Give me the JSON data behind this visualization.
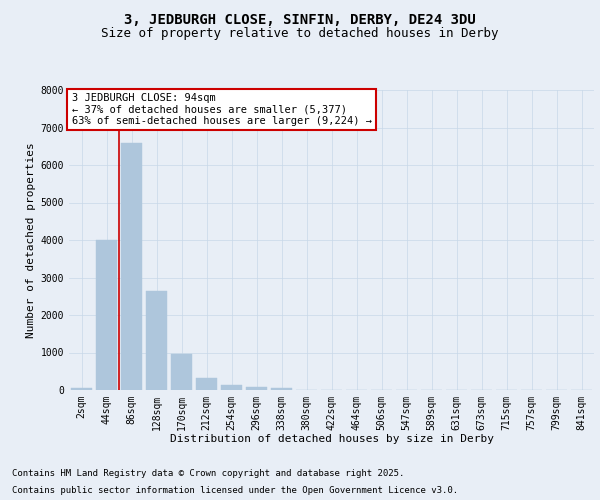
{
  "title_line1": "3, JEDBURGH CLOSE, SINFIN, DERBY, DE24 3DU",
  "title_line2": "Size of property relative to detached houses in Derby",
  "xlabel": "Distribution of detached houses by size in Derby",
  "ylabel": "Number of detached properties",
  "categories": [
    "2sqm",
    "44sqm",
    "86sqm",
    "128sqm",
    "170sqm",
    "212sqm",
    "254sqm",
    "296sqm",
    "338sqm",
    "380sqm",
    "422sqm",
    "464sqm",
    "506sqm",
    "547sqm",
    "589sqm",
    "631sqm",
    "673sqm",
    "715sqm",
    "757sqm",
    "799sqm",
    "841sqm"
  ],
  "values": [
    60,
    4000,
    6600,
    2650,
    950,
    320,
    130,
    70,
    50,
    0,
    0,
    0,
    0,
    0,
    0,
    0,
    0,
    0,
    0,
    0,
    0
  ],
  "bar_color": "#aec6dc",
  "bar_edge_color": "#aec6dc",
  "vline_color": "#cc0000",
  "annotation_text": "3 JEDBURGH CLOSE: 94sqm\n← 37% of detached houses are smaller (5,377)\n63% of semi-detached houses are larger (9,224) →",
  "annotation_box_facecolor": "#ffffff",
  "annotation_box_edgecolor": "#cc0000",
  "annotation_fontsize": 7.5,
  "grid_color": "#c8d8e8",
  "bg_color": "#e8eef6",
  "plot_bg_color": "#e8eef6",
  "ylim": [
    0,
    8000
  ],
  "yticks": [
    0,
    1000,
    2000,
    3000,
    4000,
    5000,
    6000,
    7000,
    8000
  ],
  "footer_line1": "Contains HM Land Registry data © Crown copyright and database right 2025.",
  "footer_line2": "Contains public sector information licensed under the Open Government Licence v3.0.",
  "title_fontsize": 10,
  "subtitle_fontsize": 9,
  "axis_label_fontsize": 8,
  "tick_fontsize": 7,
  "footer_fontsize": 6.5
}
